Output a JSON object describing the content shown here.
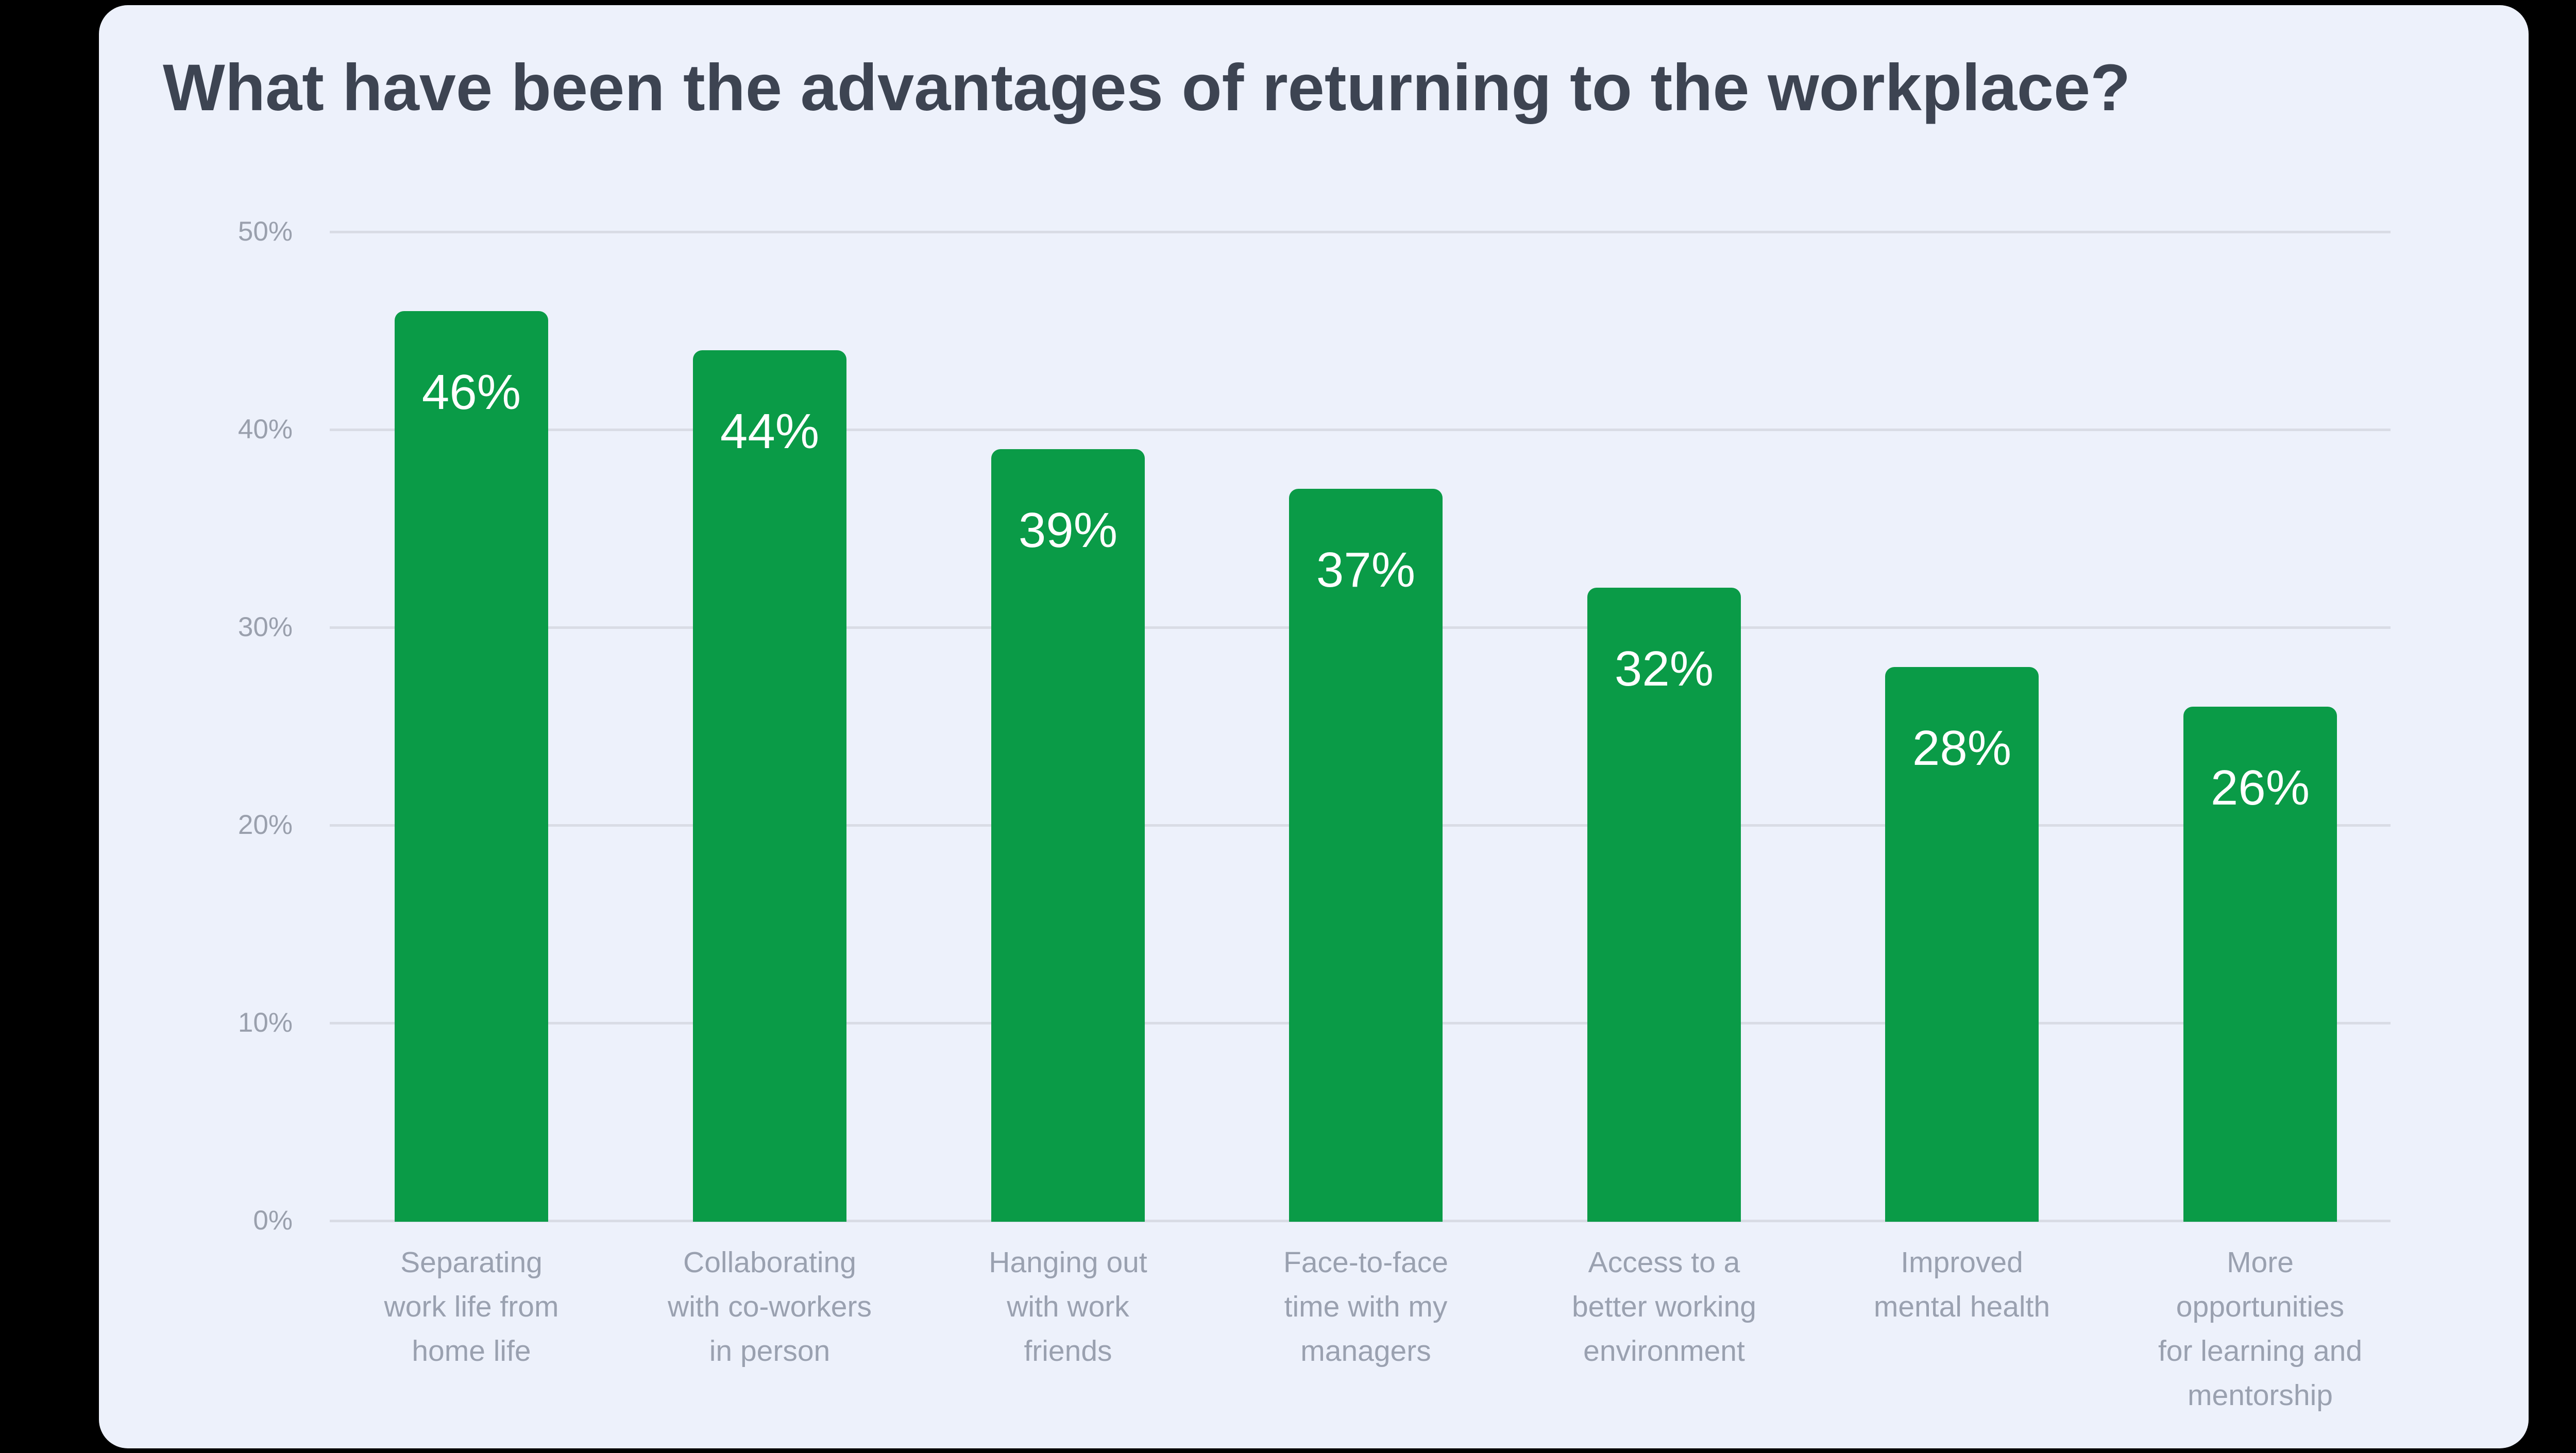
{
  "title": "What have been the advantages of returning to the workplace?",
  "colors": {
    "page_background": "#000000",
    "card_background": "#edf1fb",
    "bar": "#0a9b47",
    "title_text": "#3d4452",
    "y_tick_text": "#9aa0ad",
    "category_text": "#9aa1b0",
    "gridline": "#d9dce5",
    "value_label_text": "#ffffff"
  },
  "chart_data": {
    "type": "bar",
    "title": "What have been the advantages of returning to the workplace?",
    "categories": [
      "Separating work life from home life",
      "Collaborating with co-workers in person",
      "Hanging out with work friends",
      "Face-to-face time with my managers",
      "Access to a better working environment",
      "Improved mental health",
      "More opportunities for learning and mentorship"
    ],
    "category_lines": [
      [
        "Separating",
        "work life from",
        "home life"
      ],
      [
        "Collaborating",
        "with co-workers",
        "in person"
      ],
      [
        "Hanging out",
        "with work",
        "friends"
      ],
      [
        "Face-to-face",
        "time with my",
        "managers"
      ],
      [
        "Access to a",
        "better working",
        "environment"
      ],
      [
        "Improved",
        "mental health"
      ],
      [
        "More",
        "opportunities",
        "for learning and",
        "mentorship"
      ]
    ],
    "values": [
      46,
      44,
      39,
      37,
      32,
      28,
      26
    ],
    "value_labels": [
      "46%",
      "44%",
      "39%",
      "37%",
      "32%",
      "28%",
      "26%"
    ],
    "y_ticks": [
      {
        "value": 50,
        "label": "50%"
      },
      {
        "value": 40,
        "label": "40%"
      },
      {
        "value": 30,
        "label": "30%"
      },
      {
        "value": 20,
        "label": "20%"
      },
      {
        "value": 10,
        "label": "10%"
      },
      {
        "value": 0,
        "label": "0%"
      }
    ],
    "ylim": [
      0,
      50
    ],
    "xlabel": "",
    "ylabel": "",
    "grid": "horizontal",
    "legend": "none"
  }
}
